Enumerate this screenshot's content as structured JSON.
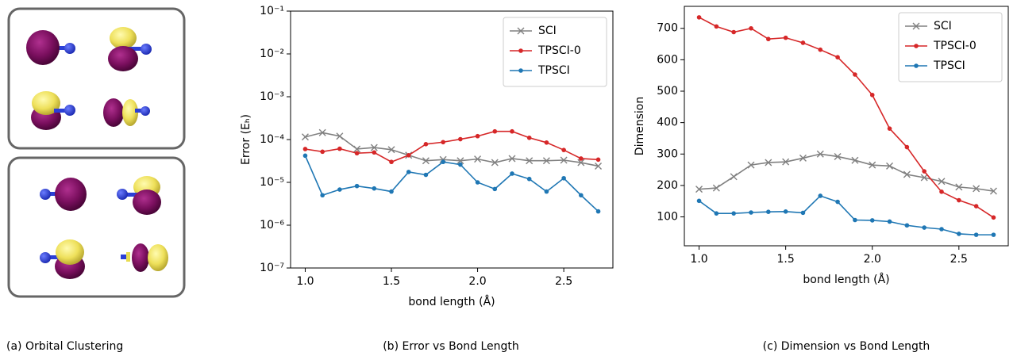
{
  "figure_a": {
    "caption": "(a) Orbital Clustering"
  },
  "chart_data": [
    {
      "type": "line",
      "caption": "(b) Error vs Bond Length",
      "xlabel": "bond length (Å)",
      "ylabel": "Error (Eₕ)",
      "x": [
        1.0,
        1.1,
        1.2,
        1.3,
        1.4,
        1.5,
        1.6,
        1.7,
        1.8,
        1.9,
        2.0,
        2.1,
        2.2,
        2.3,
        2.4,
        2.5,
        2.6,
        2.7
      ],
      "yscale": "log",
      "legend": "upper right",
      "xlim": [
        0.915,
        2.785
      ],
      "xticks": [
        {
          "value": 1,
          "label": "1.0"
        },
        1.5,
        {
          "value": 2,
          "label": "2.0"
        },
        2.5
      ],
      "ylim": [
        1e-07,
        0.1
      ],
      "yticks": [
        {
          "value": 1e-07,
          "label": "10⁻⁷"
        },
        {
          "value": 1e-06,
          "label": "10⁻⁶"
        },
        {
          "value": 1e-05,
          "label": "10⁻⁵"
        },
        {
          "value": 0.0001,
          "label": "10⁻⁴"
        },
        {
          "value": 0.001,
          "label": "10⁻³"
        },
        {
          "value": 0.01,
          "label": "10⁻²"
        },
        {
          "value": 0.1,
          "label": "10⁻¹"
        }
      ],
      "series": [
        {
          "name": "SCI",
          "color": "#808080",
          "marker": "x",
          "values": [
            0.000115,
            0.000145,
            0.00012,
            6e-05,
            6.5e-05,
            5.8e-05,
            4.3e-05,
            3.2e-05,
            3.4e-05,
            3.2e-05,
            3.5e-05,
            2.9e-05,
            3.6e-05,
            3.2e-05,
            3.2e-05,
            3.3e-05,
            2.9e-05,
            2.4e-05
          ]
        },
        {
          "name": "TPSCI-0",
          "color": "#d62728",
          "marker": "o",
          "values": [
            6e-05,
            5.2e-05,
            6.1e-05,
            4.8e-05,
            5e-05,
            3e-05,
            4.3e-05,
            7.8e-05,
            8.7e-05,
            0.000102,
            0.00012,
            0.000155,
            0.000155,
            0.00011,
            8.5e-05,
            5.7e-05,
            3.6e-05,
            3.4e-05
          ]
        },
        {
          "name": "TPSCI",
          "color": "#1f77b4",
          "marker": "o",
          "values": [
            4.2e-05,
            5e-06,
            6.8e-06,
            8.2e-06,
            7.2e-06,
            6.1e-06,
            1.75e-05,
            1.5e-05,
            3e-05,
            2.6e-05,
            1e-05,
            7e-06,
            1.6e-05,
            1.2e-05,
            6.1e-06,
            1.25e-05,
            5e-06,
            2.1e-06
          ]
        }
      ]
    },
    {
      "type": "line",
      "caption": "(c) Dimension vs Bond Length",
      "xlabel": "bond length (Å)",
      "ylabel": "Dimension",
      "x": [
        1.0,
        1.1,
        1.2,
        1.3,
        1.4,
        1.5,
        1.6,
        1.7,
        1.8,
        1.9,
        2.0,
        2.1,
        2.2,
        2.3,
        2.4,
        2.5,
        2.6,
        2.7
      ],
      "yscale": "linear",
      "legend": "upper right",
      "xlim": [
        0.915,
        2.785
      ],
      "xticks": [
        {
          "value": 1,
          "label": "1.0"
        },
        1.5,
        {
          "value": 2,
          "label": "2.0"
        },
        2.5
      ],
      "ylim": [
        8,
        770
      ],
      "yticks": [
        100,
        200,
        300,
        400,
        500,
        600,
        700
      ],
      "series": [
        {
          "name": "SCI",
          "color": "#808080",
          "marker": "x",
          "values": [
            188,
            192,
            228,
            265,
            273,
            275,
            287,
            300,
            292,
            280,
            265,
            262,
            235,
            225,
            213,
            195,
            190,
            182
          ]
        },
        {
          "name": "TPSCI-0",
          "color": "#d62728",
          "marker": "o",
          "values": [
            735,
            706,
            688,
            700,
            666,
            670,
            654,
            632,
            608,
            553,
            488,
            381,
            322,
            245,
            180,
            153,
            134,
            98
          ]
        },
        {
          "name": "TPSCI",
          "color": "#1f77b4",
          "marker": "o",
          "values": [
            151,
            111,
            111,
            114,
            116,
            117,
            113,
            167,
            148,
            90,
            89,
            85,
            73,
            66,
            61,
            46,
            43,
            43
          ]
        }
      ]
    }
  ]
}
